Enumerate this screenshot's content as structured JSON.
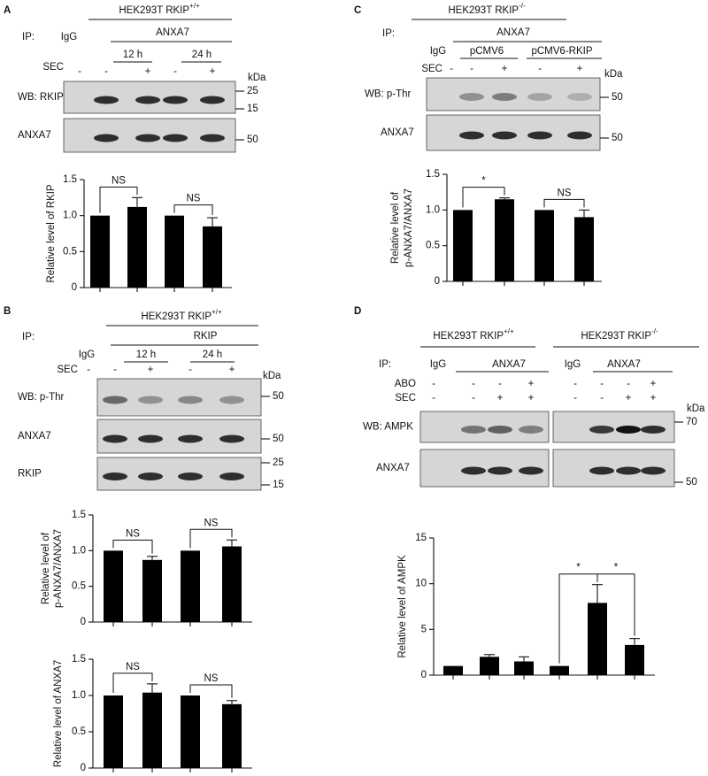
{
  "panels": {
    "A": {
      "letter": "A",
      "header": {
        "text": "HEK293T RKIP",
        "sup": "+/+"
      },
      "ip": "IP:",
      "igg": "IgG",
      "antibody": "ANXA7",
      "times": [
        "12 h",
        "24 h"
      ],
      "sec_label": "SEC",
      "sec": [
        "-",
        "-",
        "+",
        "-",
        "+"
      ],
      "kda": "kDa",
      "blots": [
        {
          "label": "WB: RKIP",
          "markers": [
            "25",
            "15"
          ]
        },
        {
          "label": "ANXA7",
          "markers": [
            "50"
          ]
        }
      ]
    },
    "B": {
      "letter": "B",
      "header": {
        "text": "HEK293T RKIP",
        "sup": "+/+"
      },
      "ip": "IP:",
      "igg": "IgG",
      "antibody": "RKIP",
      "times": [
        "12 h",
        "24 h"
      ],
      "sec_label": "SEC",
      "sec": [
        "-",
        "-",
        "+",
        "-",
        "+"
      ],
      "kda": "kDa",
      "blots": [
        {
          "label": "WB:  p-Thr",
          "markers": [
            "50"
          ]
        },
        {
          "label": "ANXA7",
          "markers": [
            "50"
          ]
        },
        {
          "label": "RKIP",
          "markers": [
            "25",
            "15"
          ]
        }
      ]
    },
    "C": {
      "letter": "C",
      "header": {
        "text": "HEK293T RKIP",
        "sup": "-/-"
      },
      "ip": "IP:",
      "igg": "IgG",
      "antibody": "ANXA7",
      "vectors": [
        "pCMV6",
        "pCMV6-RKIP"
      ],
      "sec_label": "SEC",
      "sec": [
        "-",
        "-",
        "+",
        "-",
        "+"
      ],
      "kda": "kDa",
      "blots": [
        {
          "label": "WB:  p-Thr",
          "markers": [
            "50"
          ]
        },
        {
          "label": "ANXA7",
          "markers": [
            "50"
          ]
        }
      ]
    },
    "D": {
      "letter": "D",
      "headers": [
        {
          "text": "HEK293T RKIP",
          "sup": "+/+"
        },
        {
          "text": "HEK293T RKIP",
          "sup": "-/-"
        }
      ],
      "ip": "IP:",
      "iggs": [
        "IgG",
        "IgG"
      ],
      "antibodies": [
        "ANXA7",
        "ANXA7"
      ],
      "abo_label": "ABO",
      "abo": [
        "-",
        "-",
        "-",
        "+",
        "-",
        "-",
        "-",
        "+"
      ],
      "sec_label": "SEC",
      "sec": [
        "-",
        "-",
        "+",
        "+",
        "-",
        "-",
        "+",
        "+"
      ],
      "kda": "kDa",
      "blots": [
        {
          "label": "WB: AMPK",
          "markers": [
            "70"
          ]
        },
        {
          "label": "ANXA7",
          "markers": [
            "50"
          ]
        }
      ]
    }
  },
  "chart_data": [
    {
      "type": "bar",
      "ylabel": [
        "Relative level of RKIP"
      ],
      "color": "#000000",
      "values": [
        1,
        1.12,
        1,
        0.85
      ],
      "errors": [
        0,
        0.13,
        0,
        0.12
      ],
      "ylim": [
        0,
        1.5
      ],
      "yticks": [
        0,
        0.5,
        {
          "value": 1,
          "label": "1.0"
        },
        1.5
      ],
      "annotations": [
        "NS",
        "NS"
      ]
    },
    {
      "type": "bar",
      "ylabel": [
        "Relative level of",
        "p-ANXA7/ANXA7"
      ],
      "color": "#000000",
      "values": [
        1,
        0.87,
        1,
        1.06
      ],
      "errors": [
        0,
        0.05,
        0,
        0.09
      ],
      "ylim": [
        0,
        1.5
      ],
      "yticks": [
        0,
        0.5,
        {
          "value": 1,
          "label": "1.0"
        },
        1.5
      ],
      "annotations": [
        "NS",
        "NS"
      ]
    },
    {
      "type": "bar",
      "ylabel": [
        "Relative level of ANXA7"
      ],
      "color": "#000000",
      "values": [
        1,
        1.04,
        1,
        0.88
      ],
      "errors": [
        0,
        0.12,
        0,
        0.05
      ],
      "ylim": [
        0,
        1.5
      ],
      "yticks": [
        0,
        0.5,
        {
          "value": 1,
          "label": "1.0"
        },
        1.5
      ],
      "annotations": [
        "NS",
        "NS"
      ]
    },
    {
      "type": "bar",
      "ylabel": [
        "Relative level of",
        "p-ANXA7/ANXA7"
      ],
      "color": "#000000",
      "values": [
        1,
        1.15,
        1,
        0.9
      ],
      "errors": [
        0,
        0.02,
        0,
        0.1
      ],
      "ylim": [
        0,
        1.5
      ],
      "yticks": [
        0,
        0.5,
        {
          "value": 1,
          "label": "1.0"
        },
        1.5
      ],
      "annotations": [
        "*",
        "NS"
      ]
    },
    {
      "type": "bar",
      "ylabel": [
        "Relative level of AMPK"
      ],
      "color": "#000000",
      "values": [
        1,
        2,
        1.5,
        1,
        7.9,
        3.3
      ],
      "errors": [
        0,
        0.25,
        0.5,
        0,
        2,
        0.7
      ],
      "ylim": [
        0,
        15
      ],
      "yticks": [
        0,
        5,
        10,
        15
      ],
      "annotations": [
        "*",
        "*"
      ]
    }
  ]
}
